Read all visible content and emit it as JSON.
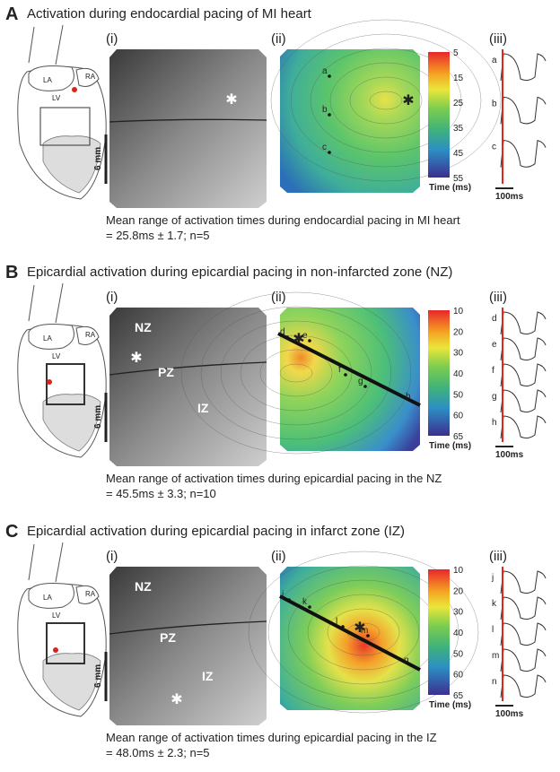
{
  "panels": [
    {
      "letter": "A",
      "title": "Activation during endocardial  pacing of MI heart",
      "heart_labels": [
        "LA",
        "RA",
        "LV"
      ],
      "subpanels": [
        "(i)",
        "(ii)",
        "(iii)"
      ],
      "scale_label": "6 mm",
      "photo_labels": [],
      "map_points": [
        "a",
        "b",
        "c"
      ],
      "colorbar_ticks": [
        5,
        15,
        25,
        35,
        45,
        55
      ],
      "colorbar_label": "Time (ms)",
      "trace_labels": [
        "a",
        "b",
        "c"
      ],
      "time_scale": "100ms",
      "summary": [
        "Mean range of activation times during endocardial pacing in MI heart",
        "= 25.8ms ± 1.7; n=5"
      ]
    },
    {
      "letter": "B",
      "title": "Epicardial activation during epicardial pacing in non-infarcted zone (NZ)",
      "heart_labels": [
        "LA",
        "RA",
        "LV"
      ],
      "subpanels": [
        "(i)",
        "(ii)",
        "(iii)"
      ],
      "scale_label": "6 mm",
      "photo_labels": [
        "NZ",
        "PZ",
        "IZ"
      ],
      "map_points": [
        "d",
        "e",
        "f",
        "g",
        "h"
      ],
      "colorbar_ticks": [
        10,
        20,
        30,
        40,
        50,
        60,
        65
      ],
      "colorbar_label": "Time (ms)",
      "trace_labels": [
        "d",
        "e",
        "f",
        "g",
        "h"
      ],
      "time_scale": "100ms",
      "summary": [
        "Mean range of activation times during epicardial pacing in the NZ",
        "= 45.5ms ± 3.3; n=10"
      ]
    },
    {
      "letter": "C",
      "title": "Epicardial activation during epicardial pacing in infarct zone (IZ)",
      "heart_labels": [
        "LA",
        "RA",
        "LV"
      ],
      "subpanels": [
        "(i)",
        "(ii)",
        "(iii)"
      ],
      "scale_label": "6 mm",
      "photo_labels": [
        "NZ",
        "PZ",
        "IZ"
      ],
      "map_points": [
        "j",
        "k",
        "l",
        "m",
        "n"
      ],
      "colorbar_ticks": [
        10,
        20,
        30,
        40,
        50,
        60,
        65
      ],
      "colorbar_label": "Time (ms)",
      "trace_labels": [
        "j",
        "k",
        "l",
        "m",
        "n"
      ],
      "time_scale": "100ms",
      "summary": [
        "Mean range of activation times during epicardial pacing in the IZ",
        "= 48.0ms ± 2.3; n=5"
      ]
    }
  ]
}
